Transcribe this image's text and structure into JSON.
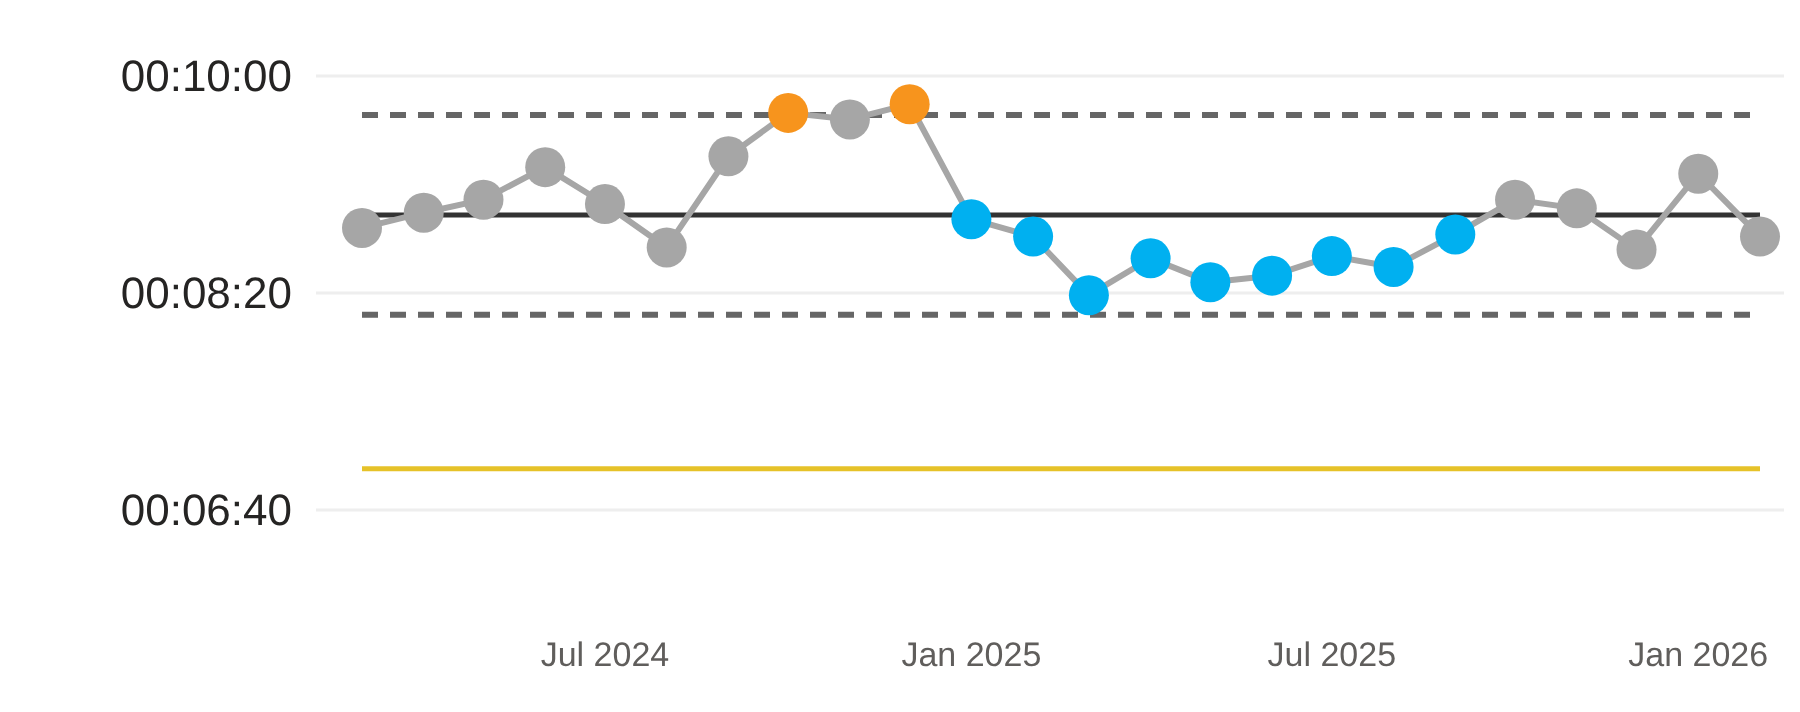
{
  "chart_data": {
    "type": "line",
    "x": [
      "2024-03",
      "2024-04",
      "2024-05",
      "2024-06",
      "2024-07",
      "2024-08",
      "2024-09",
      "2024-10",
      "2024-11",
      "2024-12",
      "2025-01",
      "2025-02",
      "2025-03",
      "2025-04",
      "2025-05",
      "2025-06",
      "2025-07",
      "2025-08",
      "2025-09",
      "2025-10",
      "2025-11",
      "2025-12",
      "2026-01",
      "2026-02"
    ],
    "series": [
      {
        "color": "#a6a6a6",
        "values": [
          530,
          537,
          543,
          558,
          541,
          521,
          563,
          583,
          580,
          587,
          534,
          526,
          499,
          516,
          505,
          508,
          517,
          512,
          527,
          543,
          539,
          520,
          555,
          526
        ],
        "colors": [
          "#a6a6a6",
          "#a6a6a6",
          "#a6a6a6",
          "#a6a6a6",
          "#a6a6a6",
          "#a6a6a6",
          "#a6a6a6",
          "#f7941d",
          "#a6a6a6",
          "#f7941d",
          "#00b0f0",
          "#00b0f0",
          "#00b0f0",
          "#00b0f0",
          "#00b0f0",
          "#00b0f0",
          "#00b0f0",
          "#00b0f0",
          "#00b0f0",
          "#a6a6a6",
          "#a6a6a6",
          "#a6a6a6",
          "#a6a6a6",
          "#a6a6a6"
        ]
      }
    ],
    "xticks": [
      {
        "value": "2024-07",
        "label": "Jul 2024"
      },
      {
        "value": "2025-01",
        "label": "Jan 2025"
      },
      {
        "value": "2025-07",
        "label": "Jul 2025"
      },
      {
        "value": "2026-01",
        "label": "Jan 2026"
      }
    ],
    "yticks": [
      {
        "value": 400,
        "label": "00:06:40"
      },
      {
        "value": 500,
        "label": "00:08:20"
      },
      {
        "value": 600,
        "label": "00:10:00"
      }
    ],
    "ref_lines": [
      {
        "axis": "y",
        "value": 536,
        "color": "#333333",
        "line_style": "solid"
      },
      {
        "axis": "y",
        "value": 582,
        "color": "#666666",
        "line_style": "dashed"
      },
      {
        "axis": "y",
        "value": 490,
        "color": "#666666",
        "line_style": "dashed"
      },
      {
        "axis": "y",
        "value": 419,
        "color": "#e6c229",
        "line_style": "solid"
      }
    ],
    "xlim": [
      "2024-03",
      "2026-02"
    ],
    "ylim": [
      400,
      600
    ],
    "grid": "y",
    "marker": "circle",
    "line_style": "solid"
  }
}
